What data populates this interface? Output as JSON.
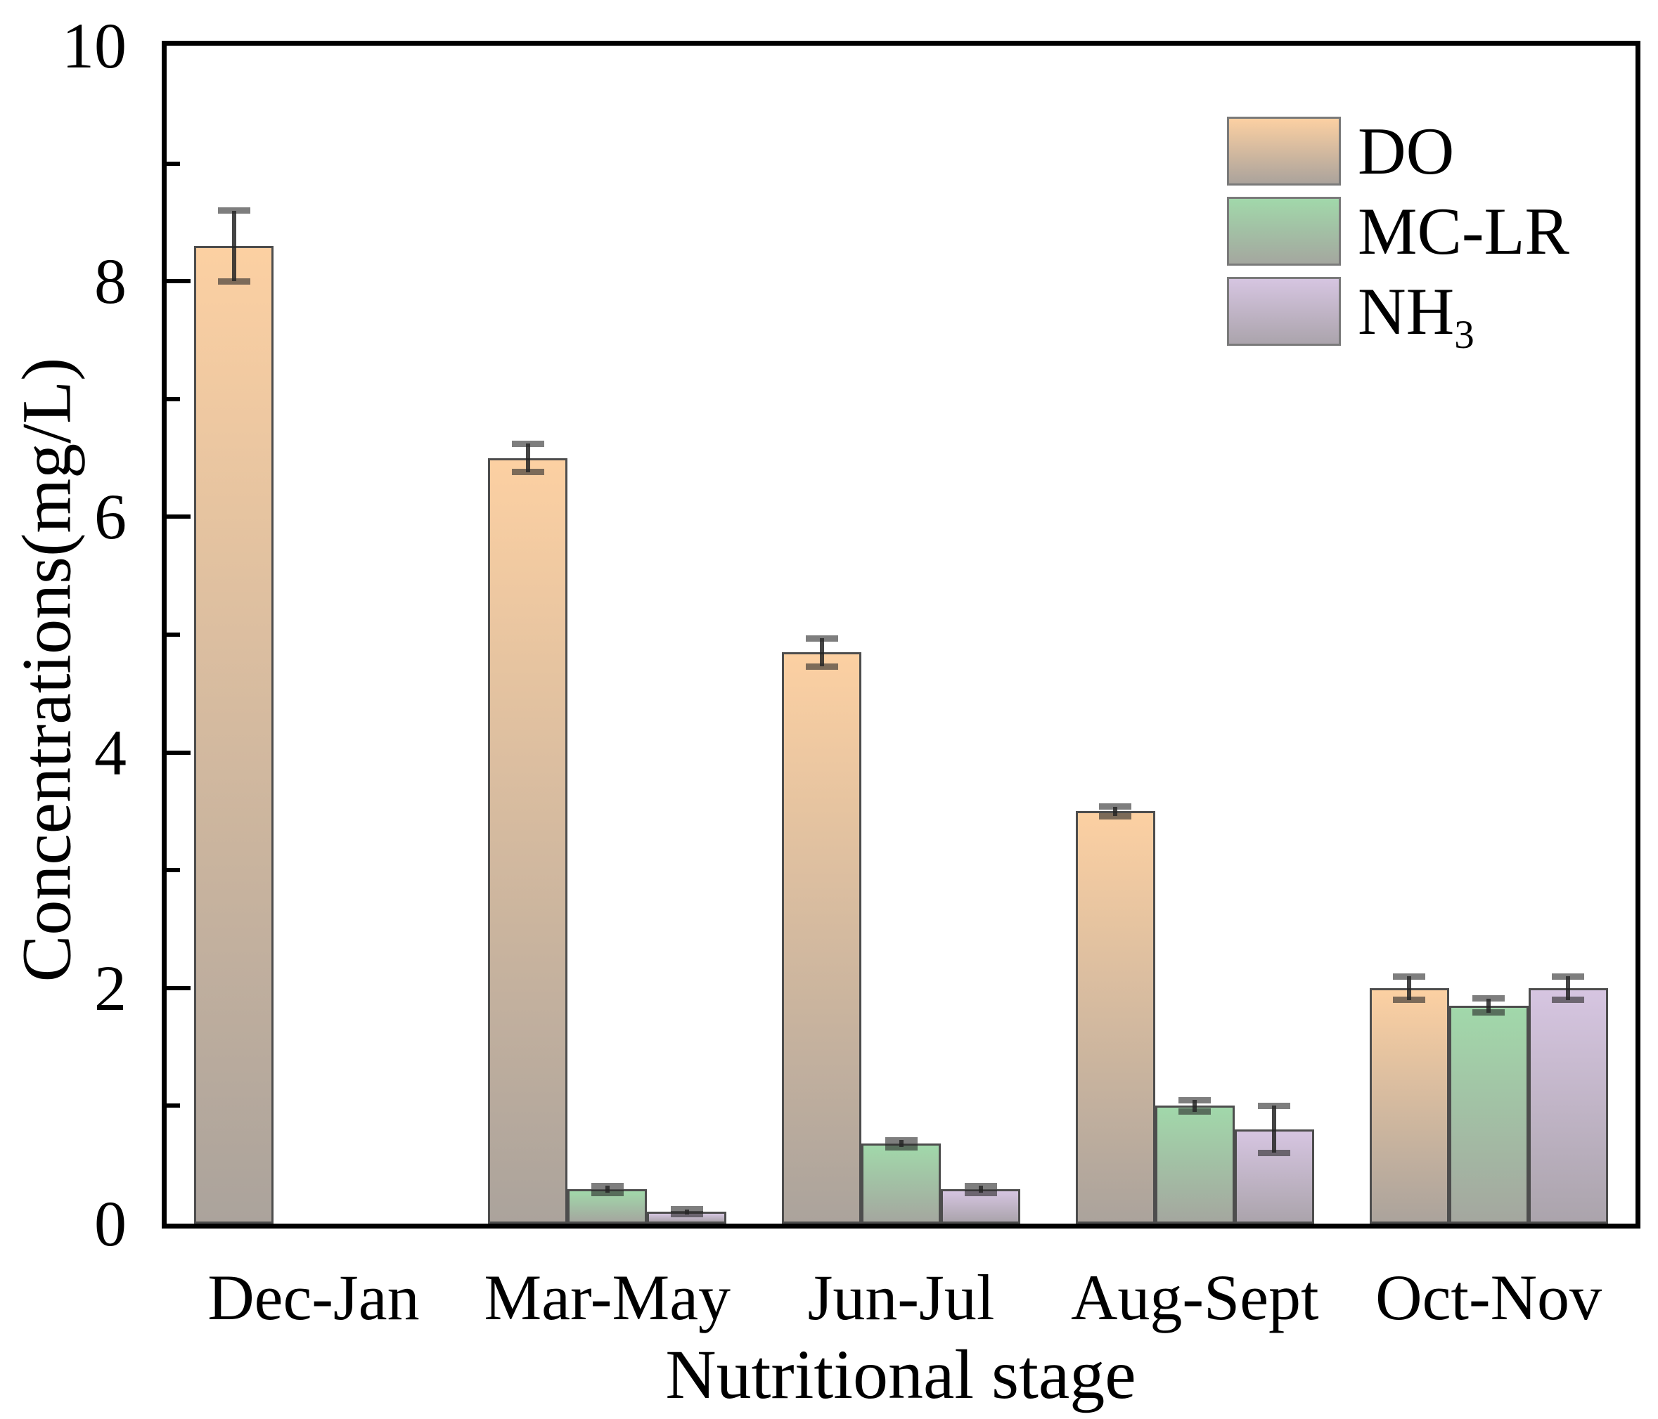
{
  "chart_data": {
    "type": "bar",
    "title": "",
    "xlabel": "Nutritional stage",
    "ylabel": "Concentrations(mg/L)",
    "categories": [
      "Dec-Jan",
      "Mar-May",
      "Jun-Jul",
      "Aug-Sept",
      "Oct-Nov"
    ],
    "series": [
      {
        "name": "DO",
        "name_sub": "",
        "values": [
          8.3,
          6.5,
          4.85,
          3.5,
          2.0
        ],
        "errors": [
          0.3,
          0.12,
          0.12,
          0.04,
          0.1
        ],
        "color_top": "#fcd0a2",
        "color_bottom": "#aba39c"
      },
      {
        "name": "MC-LR",
        "name_sub": "",
        "values": [
          null,
          0.29,
          0.68,
          1.0,
          1.85
        ],
        "errors": [
          null,
          0.03,
          0.03,
          0.05,
          0.06
        ],
        "color_top": "#a1d8aa",
        "color_bottom": "#a4a79f"
      },
      {
        "name": "NH",
        "name_sub": "3",
        "values": [
          null,
          0.1,
          0.29,
          0.8,
          2.0
        ],
        "errors": [
          null,
          0.02,
          0.03,
          0.2,
          0.1
        ],
        "color_top": "#d6c5e1",
        "color_bottom": "#aba4ac"
      }
    ],
    "ylim": [
      0,
      10
    ],
    "y_major_ticks": [
      0,
      2,
      4,
      6,
      8,
      10
    ],
    "y_minor_ticks": [
      1,
      3,
      5,
      7,
      9
    ],
    "grid": "off",
    "legend_position": "top-right-inside",
    "frame": "full-box",
    "tick_direction": "in",
    "colors": {
      "axis": "#000000",
      "bar_border": "#4d4d4d",
      "error_bar": "#232323",
      "legend_border": "#7a7a7a",
      "background": "#ffffff"
    }
  }
}
